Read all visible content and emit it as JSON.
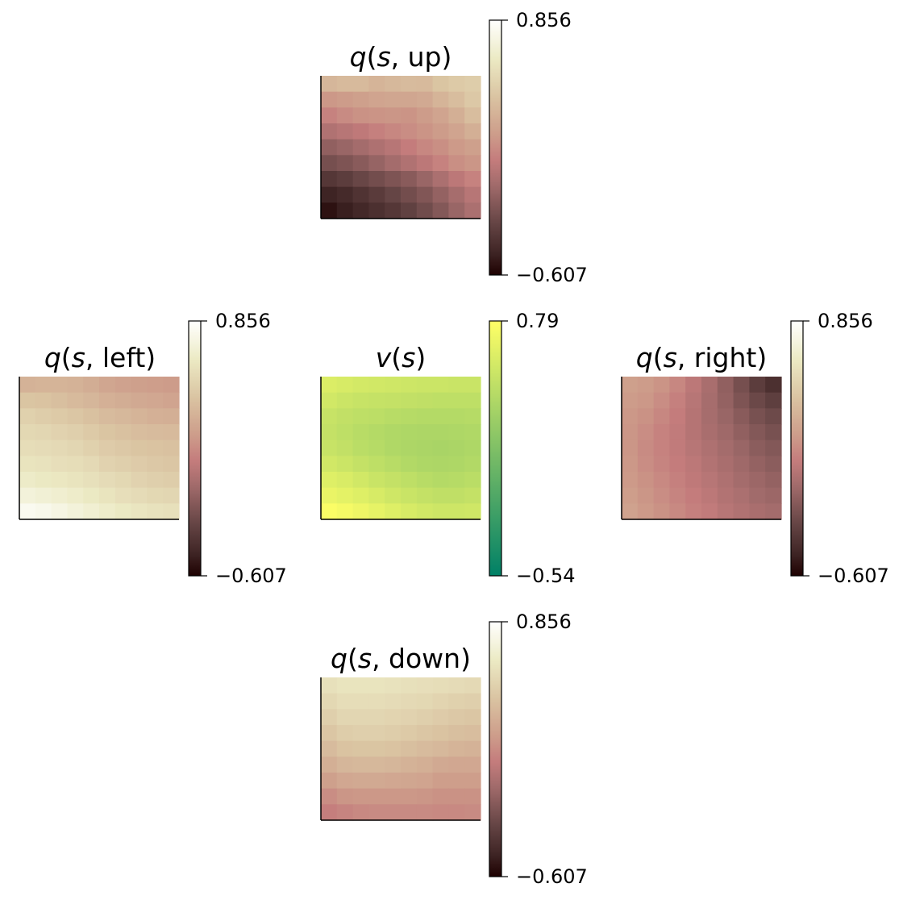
{
  "chart_data": [
    {
      "type": "heatmap",
      "panel": "up",
      "title_var": "q",
      "title_arg": "s, up",
      "cmap": "pink",
      "vmin": -0.607,
      "vmax": 0.856,
      "colorbar_ticks": [
        "0.856",
        "−0.607"
      ],
      "values": [
        [
          0.34,
          0.36,
          0.36,
          0.33,
          0.35,
          0.37,
          0.36,
          0.42,
          0.45,
          0.47
        ],
        [
          0.18,
          0.2,
          0.22,
          0.24,
          0.25,
          0.25,
          0.27,
          0.33,
          0.38,
          0.44
        ],
        [
          0.08,
          0.12,
          0.15,
          0.16,
          0.17,
          0.16,
          0.2,
          0.24,
          0.3,
          0.38
        ],
        [
          -0.03,
          0.0,
          0.03,
          0.07,
          0.1,
          0.13,
          0.16,
          0.2,
          0.24,
          0.3
        ],
        [
          -0.15,
          -0.12,
          -0.08,
          -0.04,
          0.0,
          0.05,
          0.1,
          0.14,
          0.19,
          0.22
        ],
        [
          -0.25,
          -0.22,
          -0.18,
          -0.13,
          -0.08,
          -0.03,
          0.02,
          0.08,
          0.14,
          0.17
        ],
        [
          -0.38,
          -0.35,
          -0.3,
          -0.26,
          -0.22,
          -0.18,
          -0.12,
          -0.05,
          0.02,
          0.08
        ],
        [
          -0.48,
          -0.45,
          -0.4,
          -0.36,
          -0.31,
          -0.26,
          -0.21,
          -0.14,
          -0.07,
          0.0
        ],
        [
          -0.55,
          -0.5,
          -0.46,
          -0.42,
          -0.38,
          -0.33,
          -0.27,
          -0.2,
          -0.12,
          -0.05
        ]
      ]
    },
    {
      "type": "heatmap",
      "panel": "left",
      "title_var": "q",
      "title_arg": "s, left",
      "cmap": "pink",
      "vmin": -0.607,
      "vmax": 0.856,
      "colorbar_ticks": [
        "0.856",
        "−0.607"
      ],
      "values": [
        [
          0.32,
          0.33,
          0.33,
          0.32,
          0.29,
          0.25,
          0.23,
          0.22,
          0.21,
          0.2
        ],
        [
          0.42,
          0.41,
          0.39,
          0.36,
          0.34,
          0.31,
          0.29,
          0.27,
          0.26,
          0.24
        ],
        [
          0.49,
          0.47,
          0.45,
          0.43,
          0.4,
          0.37,
          0.35,
          0.33,
          0.31,
          0.3
        ],
        [
          0.53,
          0.52,
          0.5,
          0.48,
          0.45,
          0.42,
          0.4,
          0.38,
          0.37,
          0.36
        ],
        [
          0.56,
          0.55,
          0.54,
          0.52,
          0.49,
          0.46,
          0.44,
          0.42,
          0.41,
          0.4
        ],
        [
          0.6,
          0.59,
          0.57,
          0.56,
          0.54,
          0.5,
          0.48,
          0.46,
          0.44,
          0.43
        ],
        [
          0.65,
          0.63,
          0.62,
          0.6,
          0.58,
          0.55,
          0.53,
          0.5,
          0.48,
          0.47
        ],
        [
          0.72,
          0.7,
          0.68,
          0.66,
          0.63,
          0.6,
          0.57,
          0.55,
          0.53,
          0.52
        ],
        [
          0.8,
          0.78,
          0.75,
          0.72,
          0.69,
          0.66,
          0.63,
          0.61,
          0.59,
          0.58
        ]
      ]
    },
    {
      "type": "heatmap",
      "panel": "value",
      "title_var": "v",
      "title_arg": "s",
      "cmap": "summer",
      "vmin": -0.54,
      "vmax": 0.79,
      "colorbar_ticks": [
        "0.79",
        "−0.54"
      ],
      "values": [
        [
          0.6,
          0.58,
          0.56,
          0.55,
          0.54,
          0.53,
          0.52,
          0.52,
          0.51,
          0.51
        ],
        [
          0.55,
          0.52,
          0.5,
          0.49,
          0.48,
          0.47,
          0.46,
          0.45,
          0.45,
          0.45
        ],
        [
          0.5,
          0.47,
          0.45,
          0.44,
          0.42,
          0.41,
          0.4,
          0.4,
          0.4,
          0.41
        ],
        [
          0.48,
          0.45,
          0.42,
          0.4,
          0.38,
          0.37,
          0.36,
          0.36,
          0.37,
          0.38
        ],
        [
          0.5,
          0.47,
          0.43,
          0.41,
          0.38,
          0.36,
          0.35,
          0.34,
          0.35,
          0.37
        ],
        [
          0.55,
          0.52,
          0.48,
          0.45,
          0.42,
          0.39,
          0.37,
          0.36,
          0.37,
          0.39
        ],
        [
          0.62,
          0.59,
          0.55,
          0.51,
          0.48,
          0.45,
          0.42,
          0.4,
          0.41,
          0.43
        ],
        [
          0.68,
          0.65,
          0.62,
          0.58,
          0.54,
          0.51,
          0.48,
          0.46,
          0.46,
          0.48
        ],
        [
          0.77,
          0.74,
          0.7,
          0.66,
          0.62,
          0.58,
          0.55,
          0.53,
          0.53,
          0.54
        ]
      ]
    },
    {
      "type": "heatmap",
      "panel": "right",
      "title_var": "q",
      "title_arg": "s, right",
      "cmap": "pink",
      "vmin": -0.607,
      "vmax": 0.856,
      "colorbar_ticks": [
        "0.856",
        "−0.607"
      ],
      "values": [
        [
          0.22,
          0.2,
          0.16,
          0.1,
          0.02,
          -0.06,
          -0.15,
          -0.25,
          -0.35,
          -0.42
        ],
        [
          0.2,
          0.18,
          0.13,
          0.07,
          0.0,
          -0.07,
          -0.14,
          -0.22,
          -0.29,
          -0.34
        ],
        [
          0.18,
          0.15,
          0.1,
          0.05,
          -0.01,
          -0.07,
          -0.12,
          -0.18,
          -0.24,
          -0.28
        ],
        [
          0.17,
          0.13,
          0.08,
          0.04,
          -0.01,
          -0.06,
          -0.1,
          -0.15,
          -0.2,
          -0.24
        ],
        [
          0.17,
          0.12,
          0.08,
          0.04,
          0.0,
          -0.04,
          -0.08,
          -0.12,
          -0.17,
          -0.2
        ],
        [
          0.18,
          0.13,
          0.09,
          0.05,
          0.02,
          -0.02,
          -0.06,
          -0.1,
          -0.14,
          -0.17
        ],
        [
          0.19,
          0.15,
          0.11,
          0.07,
          0.03,
          0.0,
          -0.04,
          -0.08,
          -0.11,
          -0.14
        ],
        [
          0.21,
          0.17,
          0.13,
          0.09,
          0.05,
          0.02,
          -0.02,
          -0.05,
          -0.09,
          -0.11
        ],
        [
          0.23,
          0.19,
          0.15,
          0.11,
          0.07,
          0.04,
          0.0,
          -0.03,
          -0.06,
          -0.08
        ]
      ]
    },
    {
      "type": "heatmap",
      "panel": "down",
      "title_var": "q",
      "title_arg": "s, down",
      "cmap": "pink",
      "vmin": -0.607,
      "vmax": 0.856,
      "colorbar_ticks": [
        "0.856",
        "−0.607"
      ],
      "values": [
        [
          0.58,
          0.6,
          0.6,
          0.6,
          0.59,
          0.58,
          0.57,
          0.56,
          0.55,
          0.54
        ],
        [
          0.53,
          0.56,
          0.56,
          0.56,
          0.55,
          0.54,
          0.53,
          0.51,
          0.49,
          0.48
        ],
        [
          0.48,
          0.52,
          0.52,
          0.52,
          0.51,
          0.5,
          0.48,
          0.46,
          0.44,
          0.43
        ],
        [
          0.43,
          0.47,
          0.48,
          0.48,
          0.47,
          0.45,
          0.43,
          0.41,
          0.39,
          0.38
        ],
        [
          0.37,
          0.41,
          0.42,
          0.42,
          0.41,
          0.39,
          0.37,
          0.35,
          0.33,
          0.32
        ],
        [
          0.3,
          0.34,
          0.35,
          0.35,
          0.34,
          0.32,
          0.3,
          0.27,
          0.26,
          0.26
        ],
        [
          0.22,
          0.26,
          0.27,
          0.27,
          0.26,
          0.25,
          0.24,
          0.21,
          0.21,
          0.21
        ],
        [
          0.13,
          0.17,
          0.18,
          0.18,
          0.18,
          0.18,
          0.17,
          0.15,
          0.15,
          0.15
        ],
        [
          0.06,
          0.09,
          0.11,
          0.12,
          0.12,
          0.12,
          0.12,
          0.11,
          0.11,
          0.12
        ]
      ]
    }
  ]
}
